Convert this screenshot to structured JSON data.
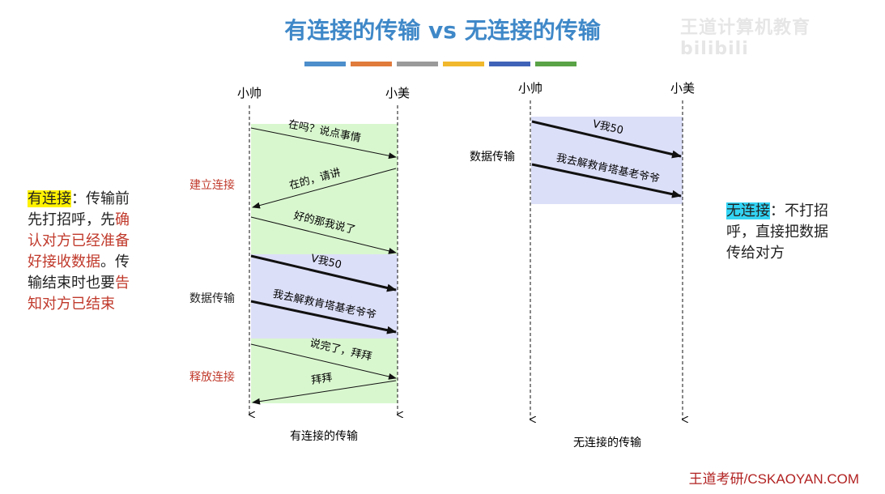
{
  "title": "有连接的传输 vs 无连接的传输",
  "watermark": "王道计算机教育 bilibili",
  "color_bar": [
    "#4d8fcc",
    "#e07b3c",
    "#9a9a9a",
    "#f1b82d",
    "#3f63b8",
    "#5aa346"
  ],
  "connected": {
    "left_actor": "小帅",
    "right_actor": "小美",
    "caption": "有连接的传输",
    "phases": {
      "establish": "建立连接",
      "data": "数据传输",
      "release": "释放连接"
    },
    "messages": [
      "在吗？说点事情",
      "在的，请讲",
      "好的那我说了",
      "V我50",
      "我去解救肯塔基老爷爷",
      "说完了，拜拜",
      "拜拜"
    ]
  },
  "connectionless": {
    "left_actor": "小帅",
    "right_actor": "小美",
    "caption": "无连接的传输",
    "phase": "数据传输",
    "messages": [
      "V我50",
      "我去解救肯塔基老爷爷"
    ]
  },
  "left_note": {
    "term": "有连接",
    "colon": "：",
    "line1_tail": "传输前",
    "line2": "先打招呼，先",
    "line2_red": "确",
    "line3_red": "认对方已经准备",
    "line4_red": "好接收数据",
    "line4_tail": "。传",
    "line5": "输结束时也要",
    "line5_red": "告",
    "line6_red": "知对方已结束"
  },
  "right_note": {
    "term": "无连接",
    "colon": "：",
    "line1_tail": "不打招",
    "line2": "呼，直接把数据",
    "line3": "传给对方"
  },
  "footer": "王道考研/CSKAOYAN.COM",
  "colors": {
    "title": "#3f88c8",
    "phase_red": "#c0392b",
    "green_zone": "#d9f7cf",
    "blue_zone": "#dcdff8"
  }
}
